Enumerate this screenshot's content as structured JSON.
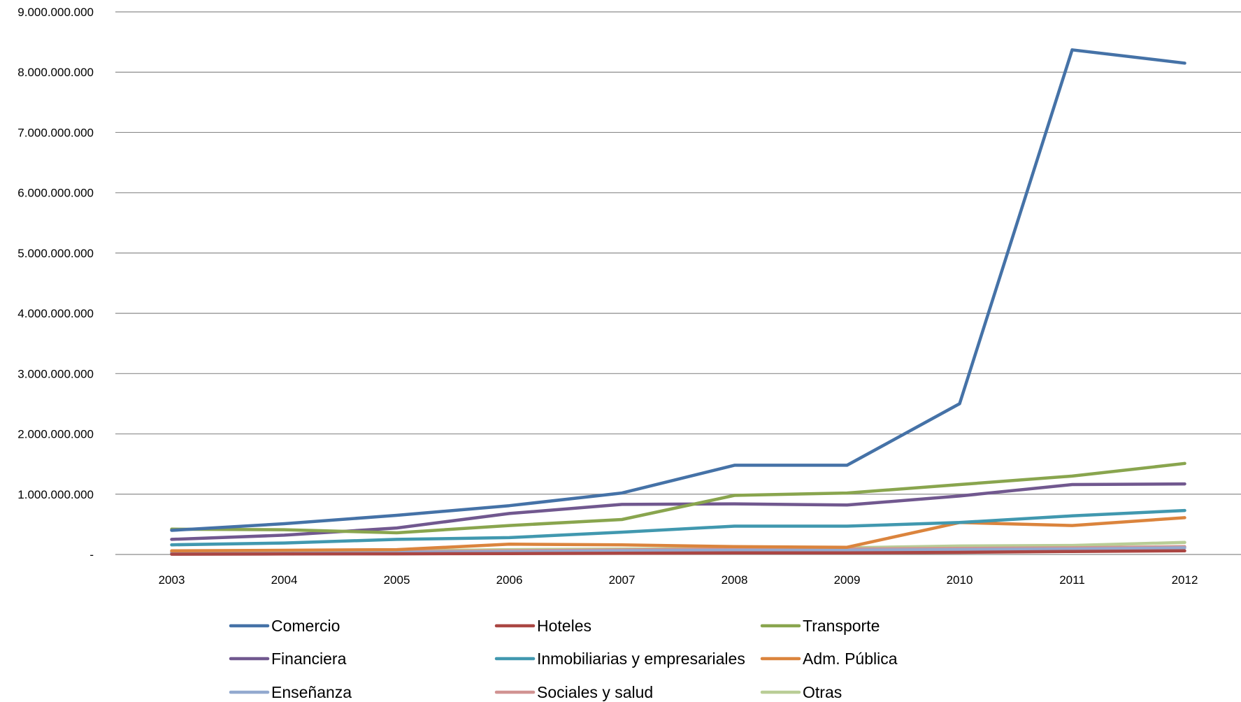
{
  "chart_data": {
    "type": "line",
    "title": "",
    "xlabel": "",
    "ylabel": "",
    "categories": [
      "2003",
      "2004",
      "2005",
      "2006",
      "2007",
      "2008",
      "2009",
      "2010",
      "2011",
      "2012"
    ],
    "ylim": [
      0,
      9000000000
    ],
    "yticks": [
      0,
      1000000000,
      2000000000,
      3000000000,
      4000000000,
      5000000000,
      6000000000,
      7000000000,
      8000000000,
      9000000000
    ],
    "ytick_labels": [
      "-",
      "1.000.000.000",
      "2.000.000.000",
      "3.000.000.000",
      "4.000.000.000",
      "5.000.000.000",
      "6.000.000.000",
      "7.000.000.000",
      "8.000.000.000",
      "9.000.000.000"
    ],
    "grid": "horizontal",
    "legend_position": "bottom",
    "series": [
      {
        "name": "Comercio",
        "color": "#4572A7",
        "values": [
          400000000,
          510000000,
          650000000,
          810000000,
          1020000000,
          1480000000,
          1480000000,
          2500000000,
          8370000000,
          8150000000
        ]
      },
      {
        "name": "Hoteles",
        "color": "#AA4643",
        "values": [
          5000000,
          8000000,
          10000000,
          15000000,
          20000000,
          25000000,
          25000000,
          35000000,
          50000000,
          60000000
        ]
      },
      {
        "name": "Transporte",
        "color": "#89A54E",
        "values": [
          420000000,
          410000000,
          360000000,
          480000000,
          580000000,
          980000000,
          1020000000,
          1160000000,
          1300000000,
          1510000000
        ]
      },
      {
        "name": "Financiera",
        "color": "#71588F",
        "values": [
          250000000,
          320000000,
          440000000,
          680000000,
          830000000,
          840000000,
          820000000,
          970000000,
          1160000000,
          1170000000
        ]
      },
      {
        "name": "Inmobiliarias y empresariales",
        "color": "#4198AF",
        "values": [
          160000000,
          190000000,
          250000000,
          280000000,
          370000000,
          470000000,
          470000000,
          530000000,
          640000000,
          730000000
        ]
      },
      {
        "name": "Adm. Pública",
        "color": "#DB843D",
        "values": [
          60000000,
          70000000,
          80000000,
          170000000,
          160000000,
          130000000,
          120000000,
          530000000,
          480000000,
          610000000
        ]
      },
      {
        "name": "Enseñanza",
        "color": "#93A9CF",
        "values": [
          20000000,
          25000000,
          35000000,
          45000000,
          60000000,
          70000000,
          70000000,
          80000000,
          90000000,
          110000000
        ]
      },
      {
        "name": "Sociales y salud",
        "color": "#D19392",
        "values": [
          30000000,
          35000000,
          45000000,
          60000000,
          75000000,
          90000000,
          90000000,
          100000000,
          110000000,
          130000000
        ]
      },
      {
        "name": "Otras",
        "color": "#B9CD96",
        "values": [
          40000000,
          50000000,
          60000000,
          80000000,
          90000000,
          100000000,
          110000000,
          140000000,
          150000000,
          200000000
        ]
      }
    ]
  }
}
